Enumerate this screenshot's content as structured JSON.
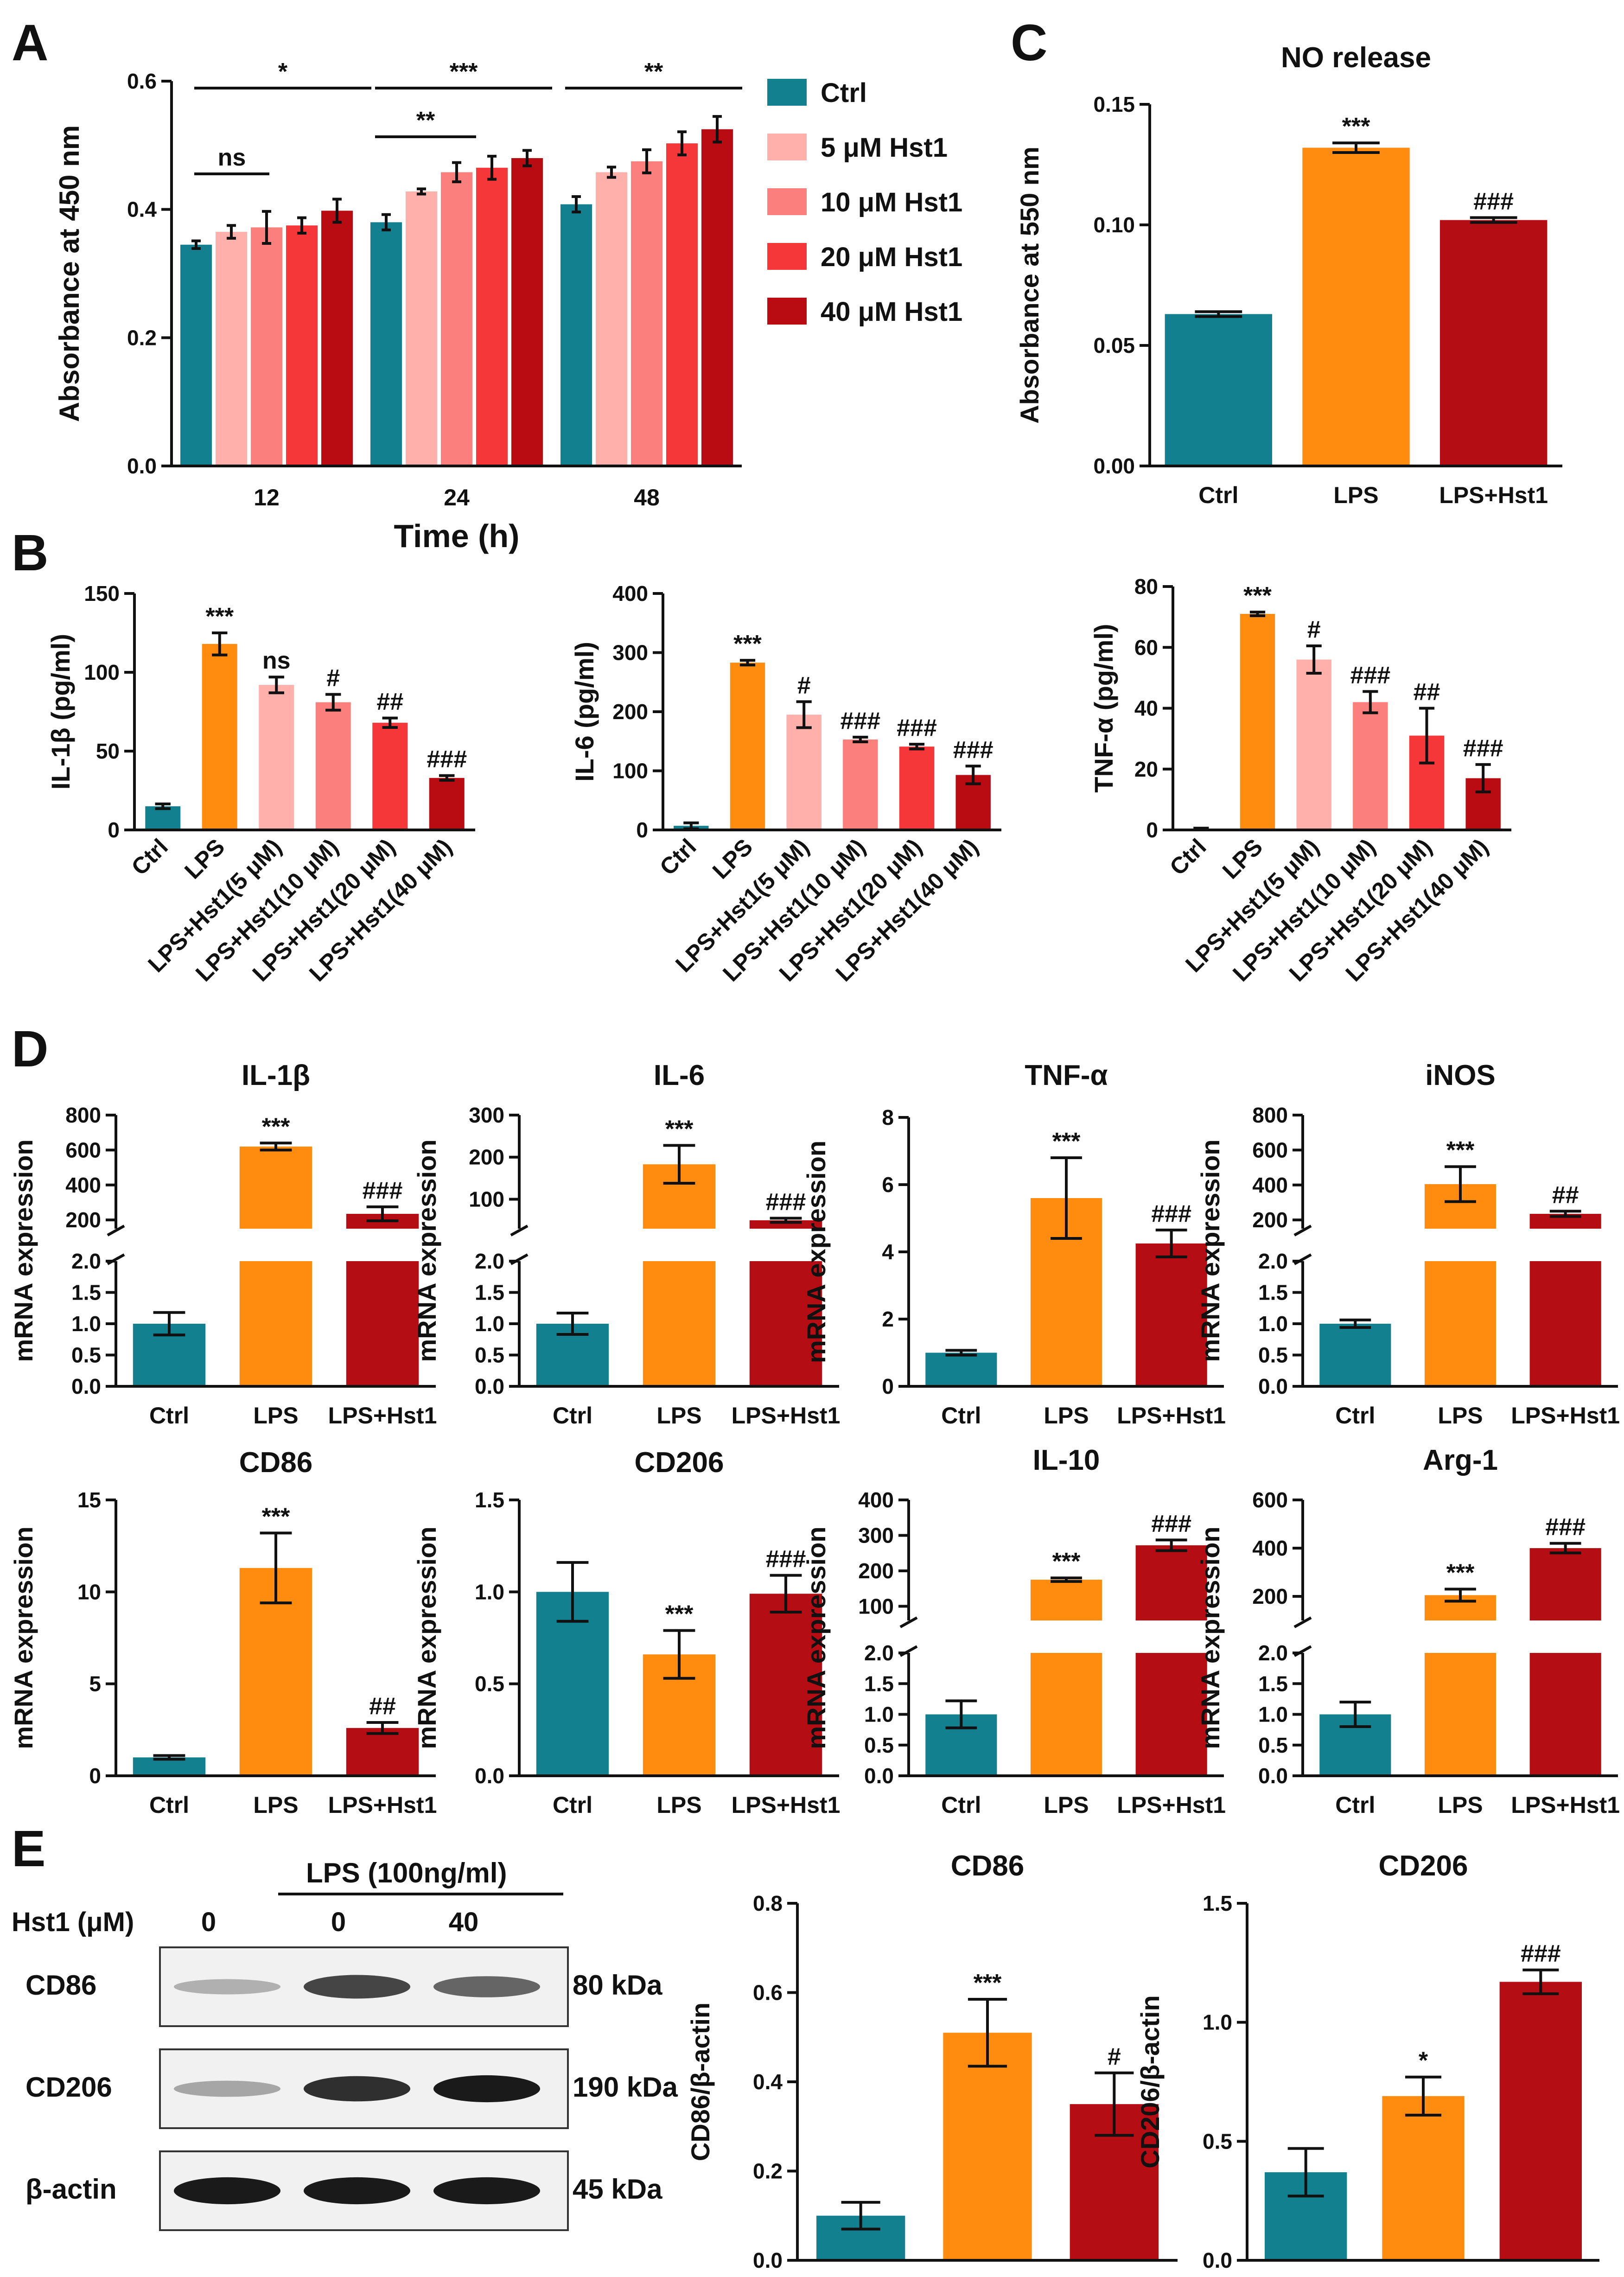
{
  "colors": {
    "ctrl": "#13808f",
    "lps": "#ff8c0f",
    "hst5": "#ffb0aa",
    "hst10": "#fb7f7d",
    "hst20": "#f5373a",
    "hst40": "#b80c12",
    "lpsHst1": "#b50d14"
  },
  "panels": {
    "A": "A",
    "B": "B",
    "C": "C",
    "D": "D",
    "E": "E"
  },
  "chart_data": [
    {
      "id": "A",
      "type": "bar",
      "title": "",
      "xlabel": "Time (h)",
      "ylabel": "Absorbance at 450 nm",
      "ylim": [
        0,
        0.6
      ],
      "yticks": [
        "0.0",
        "0.2",
        "0.4",
        "0.6"
      ],
      "categories": [
        "12",
        "24",
        "48"
      ],
      "series": [
        {
          "name": "Ctrl",
          "values": [
            0.345,
            0.38,
            0.408
          ],
          "err": [
            0.006,
            0.012,
            0.012
          ]
        },
        {
          "name": "5 μM Hst1",
          "values": [
            0.365,
            0.428,
            0.458
          ],
          "err": [
            0.01,
            0.004,
            0.008
          ]
        },
        {
          "name": "10 μM Hst1",
          "values": [
            0.372,
            0.458,
            0.475
          ],
          "err": [
            0.025,
            0.015,
            0.018
          ]
        },
        {
          "name": "20 μM Hst1",
          "values": [
            0.375,
            0.465,
            0.503
          ],
          "err": [
            0.012,
            0.018,
            0.018
          ]
        },
        {
          "name": "40 μM Hst1",
          "values": [
            0.398,
            0.48,
            0.525
          ],
          "err": [
            0.018,
            0.012,
            0.02
          ]
        }
      ],
      "annotations": [
        "ns",
        "*",
        "***",
        "**",
        "**"
      ]
    },
    {
      "id": "C",
      "type": "bar",
      "title": "NO release",
      "xlabel": "",
      "ylabel": "Absorbance at 550 nm",
      "ylim": [
        0,
        0.15
      ],
      "yticks": [
        "0.00",
        "0.05",
        "0.10",
        "0.15"
      ],
      "categories": [
        "Ctrl",
        "LPS",
        "LPS+Hst1"
      ],
      "values": [
        0.063,
        0.132,
        0.102
      ],
      "err": [
        0.001,
        0.002,
        0.001
      ],
      "sig": [
        "",
        "***",
        "###"
      ]
    },
    {
      "id": "B1",
      "type": "bar",
      "title": "",
      "ylabel": "IL-1β (pg/ml)",
      "ylim": [
        0,
        150
      ],
      "yticks": [
        "0",
        "50",
        "100",
        "150"
      ],
      "categories": [
        "Ctrl",
        "LPS",
        "LPS+Hst1(5 μM)",
        "LPS+Hst1(10 μM)",
        "LPS+Hst1(20 μM)",
        "LPS+Hst1(40 μM)"
      ],
      "values": [
        15,
        118,
        92,
        81,
        68,
        33
      ],
      "err": [
        1.5,
        7,
        5,
        5,
        3,
        1.5
      ],
      "sig": [
        "",
        "***",
        "ns",
        "#",
        "##",
        "###"
      ]
    },
    {
      "id": "B2",
      "type": "bar",
      "title": "",
      "ylabel": "IL-6 (pg/ml)",
      "ylim": [
        0,
        400
      ],
      "yticks": [
        "0",
        "100",
        "200",
        "300",
        "400"
      ],
      "categories": [
        "Ctrl",
        "LPS",
        "LPS+Hst1(5 μM)",
        "LPS+Hst1(10 μM)",
        "LPS+Hst1(20 μM)",
        "LPS+Hst1(40 μM)"
      ],
      "values": [
        7,
        283,
        195,
        153,
        141,
        93
      ],
      "err": [
        5,
        4,
        22,
        4,
        4,
        15
      ],
      "sig": [
        "",
        "***",
        "#",
        "###",
        "###",
        "###"
      ]
    },
    {
      "id": "B3",
      "type": "bar",
      "title": "",
      "ylabel": "TNF-α (pg/ml)",
      "ylim": [
        0,
        80
      ],
      "yticks": [
        "0",
        "20",
        "40",
        "60",
        "80"
      ],
      "categories": [
        "Ctrl",
        "LPS",
        "LPS+Hst1(5 μM)",
        "LPS+Hst1(10 μM)",
        "LPS+Hst1(20 μM)",
        "LPS+Hst1(40 μM)"
      ],
      "values": [
        0.3,
        71,
        56,
        42,
        31,
        17
      ],
      "err": [
        0.3,
        0.6,
        4.5,
        3.5,
        9,
        4.5
      ],
      "sig": [
        "",
        "***",
        "#",
        "###",
        "##",
        "###"
      ]
    },
    {
      "id": "D1",
      "type": "bar",
      "title": "IL-1β",
      "ylabel": "mRNA expression",
      "broken": true,
      "low": {
        "ylim": [
          0,
          2
        ],
        "yticks": [
          "0.0",
          "0.5",
          "1.0",
          "1.5",
          "2.0"
        ]
      },
      "high": {
        "ylim": [
          150,
          800
        ],
        "yticks": [
          "200",
          "400",
          "600",
          "800"
        ]
      },
      "categories": [
        "Ctrl",
        "LPS",
        "LPS+Hst1"
      ],
      "values": [
        1.0,
        620,
        235
      ],
      "err": [
        0.18,
        20,
        40
      ],
      "sig": [
        "",
        "***",
        "###"
      ]
    },
    {
      "id": "D2",
      "type": "bar",
      "title": "IL-6",
      "ylabel": "mRNA expression",
      "broken": true,
      "low": {
        "ylim": [
          0,
          2
        ],
        "yticks": [
          "0.0",
          "0.5",
          "1.0",
          "1.5",
          "2.0"
        ]
      },
      "high": {
        "ylim": [
          30,
          300
        ],
        "yticks": [
          "100",
          "200",
          "300"
        ]
      },
      "categories": [
        "Ctrl",
        "LPS",
        "LPS+Hst1"
      ],
      "values": [
        1.0,
        183,
        50
      ],
      "err": [
        0.17,
        45,
        5
      ],
      "sig": [
        "",
        "***",
        "###"
      ]
    },
    {
      "id": "D3",
      "type": "bar",
      "title": "TNF-α",
      "ylabel": "mRNA expression",
      "broken": false,
      "ylim": [
        0,
        8
      ],
      "yticks": [
        "0",
        "2",
        "4",
        "6",
        "8"
      ],
      "categories": [
        "Ctrl",
        "LPS",
        "LPS+Hst1"
      ],
      "values": [
        1.0,
        5.6,
        4.25
      ],
      "err": [
        0.07,
        1.2,
        0.4
      ],
      "sig": [
        "",
        "***",
        "###"
      ]
    },
    {
      "id": "D4",
      "type": "bar",
      "title": "iNOS",
      "ylabel": "mRNA expression",
      "broken": true,
      "low": {
        "ylim": [
          0,
          2
        ],
        "yticks": [
          "0.0",
          "0.5",
          "1.0",
          "1.5",
          "2.0"
        ]
      },
      "high": {
        "ylim": [
          150,
          800
        ],
        "yticks": [
          "200",
          "400",
          "600",
          "800"
        ]
      },
      "categories": [
        "Ctrl",
        "LPS",
        "LPS+Hst1"
      ],
      "values": [
        1.0,
        405,
        235
      ],
      "err": [
        0.06,
        100,
        15
      ],
      "sig": [
        "",
        "***",
        "##"
      ]
    },
    {
      "id": "D5",
      "type": "bar",
      "title": "CD86",
      "ylabel": "mRNA expression",
      "broken": false,
      "ylim": [
        0,
        15
      ],
      "yticks": [
        "0",
        "5",
        "10",
        "15"
      ],
      "categories": [
        "Ctrl",
        "LPS",
        "LPS+Hst1"
      ],
      "values": [
        1.0,
        11.3,
        2.6
      ],
      "err": [
        0.1,
        1.9,
        0.3
      ],
      "sig": [
        "",
        "***",
        "##"
      ]
    },
    {
      "id": "D6",
      "type": "bar",
      "title": "CD206",
      "ylabel": "mRNA expression",
      "broken": false,
      "ylim": [
        0,
        1.5
      ],
      "yticks": [
        "0.0",
        "0.5",
        "1.0",
        "1.5"
      ],
      "categories": [
        "Ctrl",
        "LPS",
        "LPS+Hst1"
      ],
      "values": [
        1.0,
        0.66,
        0.99
      ],
      "err": [
        0.16,
        0.13,
        0.1
      ],
      "sig": [
        "",
        "***",
        "###"
      ]
    },
    {
      "id": "D7",
      "type": "bar",
      "title": "IL-10",
      "ylabel": "mRNA expression",
      "broken": true,
      "low": {
        "ylim": [
          0,
          2
        ],
        "yticks": [
          "0.0",
          "0.5",
          "1.0",
          "1.5",
          "2.0"
        ]
      },
      "high": {
        "ylim": [
          60,
          400
        ],
        "yticks": [
          "100",
          "200",
          "300",
          "400"
        ]
      },
      "categories": [
        "Ctrl",
        "LPS",
        "LPS+Hst1"
      ],
      "values": [
        1.0,
        175,
        272
      ],
      "err": [
        0.22,
        5,
        15
      ],
      "sig": [
        "",
        "***",
        "###"
      ]
    },
    {
      "id": "D8",
      "type": "bar",
      "title": "Arg-1",
      "ylabel": "mRNA expression",
      "broken": true,
      "low": {
        "ylim": [
          0,
          2
        ],
        "yticks": [
          "0.0",
          "0.5",
          "1.0",
          "1.5",
          "2.0"
        ]
      },
      "high": {
        "ylim": [
          100,
          600
        ],
        "yticks": [
          "200",
          "400",
          "600"
        ]
      },
      "categories": [
        "Ctrl",
        "LPS",
        "LPS+Hst1"
      ],
      "values": [
        1.0,
        205,
        400
      ],
      "err": [
        0.2,
        25,
        20
      ],
      "sig": [
        "",
        "***",
        "###"
      ]
    },
    {
      "id": "E1",
      "type": "bar",
      "title": "CD86",
      "ylabel": "CD86/β-actin",
      "ylim": [
        0,
        0.8
      ],
      "yticks": [
        "0.0",
        "0.2",
        "0.4",
        "0.6",
        "0.8"
      ],
      "categories": [
        "Ctrl",
        "LPS",
        "LPS+Hst1"
      ],
      "values": [
        0.1,
        0.51,
        0.35
      ],
      "err": [
        0.03,
        0.075,
        0.07
      ],
      "sig": [
        "",
        "***",
        "#"
      ]
    },
    {
      "id": "E2",
      "type": "bar",
      "title": "CD206",
      "ylabel": "CD206/β-actin",
      "ylim": [
        0,
        1.5
      ],
      "yticks": [
        "0.0",
        "0.5",
        "1.0",
        "1.5"
      ],
      "categories": [
        "Ctrl",
        "LPS",
        "LPS+Hst1"
      ],
      "values": [
        0.37,
        0.69,
        1.17
      ],
      "err": [
        0.1,
        0.08,
        0.05
      ],
      "sig": [
        "",
        "*",
        "###"
      ]
    }
  ],
  "western": {
    "treatment_label": "LPS (100ng/ml)",
    "hst1_label": "Hst1 (μM)",
    "doses": [
      "0",
      "0",
      "40"
    ],
    "rows": [
      {
        "name": "CD86",
        "kda": "80 kDa",
        "intensity": [
          0.25,
          0.75,
          0.6
        ]
      },
      {
        "name": "CD206",
        "kda": "190 kDa",
        "intensity": [
          0.3,
          0.85,
          0.95
        ]
      },
      {
        "name": "β-actin",
        "kda": "45 kDa",
        "intensity": [
          0.95,
          0.95,
          0.95
        ]
      }
    ]
  }
}
